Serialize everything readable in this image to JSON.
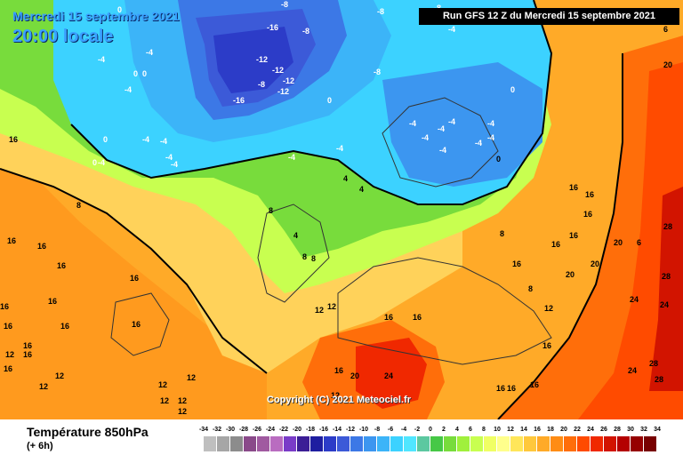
{
  "header": {
    "date_text": "Mercredi 15 septembre 2021",
    "time_text": "20:00 locale",
    "run_text": "Run GFS 12 Z du Mercredi 15 septembre 2021"
  },
  "copyright": "Copyright (C) 2021 Meteociel.fr",
  "legend": {
    "title": "Température 850hPa",
    "subtitle": "(+ 6h)",
    "ticks": [
      "-34",
      "-32",
      "-30",
      "-28",
      "-26",
      "-24",
      "-22",
      "-20",
      "-18",
      "-16",
      "-14",
      "-12",
      "-10",
      "-8",
      "-6",
      "-4",
      "-2",
      "0",
      "2",
      "4",
      "6",
      "8",
      "10",
      "12",
      "14",
      "16",
      "18",
      "20",
      "22",
      "24",
      "26",
      "28",
      "30",
      "32",
      "34"
    ],
    "colors": [
      "#bfbfbf",
      "#a6a6a6",
      "#8c8c8c",
      "#8a4a8a",
      "#a05aa0",
      "#b96cc0",
      "#7a3cc8",
      "#3c1e96",
      "#1e1ea0",
      "#2c3cc8",
      "#3c5ad8",
      "#3c78e6",
      "#3c96f0",
      "#3cb4f8",
      "#3cd2ff",
      "#50e6ff",
      "#5cc8a0",
      "#46c846",
      "#78dc3c",
      "#a0f03c",
      "#c8ff50",
      "#f0ff64",
      "#ffff8c",
      "#ffe65a",
      "#ffc83c",
      "#ffaa28",
      "#ff8c14",
      "#ff6e0a",
      "#ff4b00",
      "#f02800",
      "#d21400",
      "#b40000",
      "#960000",
      "#780000"
    ]
  },
  "map_labels": [
    {
      "text": "-16"
    },
    {
      "text": "-12"
    },
    {
      "text": "-12"
    },
    {
      "text": "-8"
    },
    {
      "text": "-12"
    },
    {
      "text": "-12"
    },
    {
      "text": "-8"
    },
    {
      "text": "-16"
    },
    {
      "text": "-8"
    },
    {
      "text": "-8"
    },
    {
      "text": "-8"
    },
    {
      "text": "-8"
    },
    {
      "text": "0"
    },
    {
      "text": "0"
    },
    {
      "text": "-4"
    },
    {
      "text": "-4"
    },
    {
      "text": "-4"
    },
    {
      "text": "0"
    },
    {
      "text": "-4"
    },
    {
      "text": "-4"
    },
    {
      "text": "-4"
    },
    {
      "text": "-4"
    },
    {
      "text": "-4"
    },
    {
      "text": "-4"
    },
    {
      "text": "-4"
    },
    {
      "text": "-4"
    },
    {
      "text": "-4"
    },
    {
      "text": "0"
    },
    {
      "text": "0"
    },
    {
      "text": "-4"
    },
    {
      "text": "-4"
    },
    {
      "text": "-4"
    },
    {
      "text": "-4"
    },
    {
      "text": "-4"
    },
    {
      "text": "-4"
    },
    {
      "text": "0"
    },
    {
      "text": "0"
    },
    {
      "text": "0"
    },
    {
      "text": "-4"
    },
    {
      "text": "4"
    },
    {
      "text": "4"
    },
    {
      "text": "4"
    },
    {
      "text": "8"
    },
    {
      "text": "8"
    },
    {
      "text": "8"
    },
    {
      "text": "8"
    },
    {
      "text": "8"
    },
    {
      "text": "8"
    },
    {
      "text": "12"
    },
    {
      "text": "12"
    },
    {
      "text": "12"
    },
    {
      "text": "12"
    },
    {
      "text": "12"
    },
    {
      "text": "12"
    },
    {
      "text": "12"
    },
    {
      "text": "16"
    },
    {
      "text": "16"
    },
    {
      "text": "16"
    },
    {
      "text": "16"
    },
    {
      "text": "16"
    },
    {
      "text": "16"
    },
    {
      "text": "16"
    },
    {
      "text": "16"
    },
    {
      "text": "16"
    },
    {
      "text": "16"
    },
    {
      "text": "16"
    },
    {
      "text": "16"
    },
    {
      "text": "16"
    },
    {
      "text": "16"
    },
    {
      "text": "16"
    },
    {
      "text": "16"
    },
    {
      "text": "16"
    },
    {
      "text": "16"
    },
    {
      "text": "16"
    },
    {
      "text": "16"
    },
    {
      "text": "20"
    },
    {
      "text": "20"
    },
    {
      "text": "20"
    },
    {
      "text": "20"
    },
    {
      "text": "20"
    },
    {
      "text": "24"
    },
    {
      "text": "24"
    },
    {
      "text": "24"
    },
    {
      "text": "24"
    },
    {
      "text": "28"
    },
    {
      "text": "28"
    },
    {
      "text": "28"
    },
    {
      "text": "28"
    },
    {
      "text": "16"
    },
    {
      "text": "16"
    },
    {
      "text": "12"
    },
    {
      "text": "12"
    },
    {
      "text": "12"
    },
    {
      "text": "12"
    },
    {
      "text": "6"
    },
    {
      "text": "6"
    },
    {
      "text": "16"
    },
    {
      "text": "12"
    },
    {
      "text": "16"
    },
    {
      "text": "16"
    },
    {
      "text": "16"
    },
    {
      "text": "16"
    }
  ]
}
